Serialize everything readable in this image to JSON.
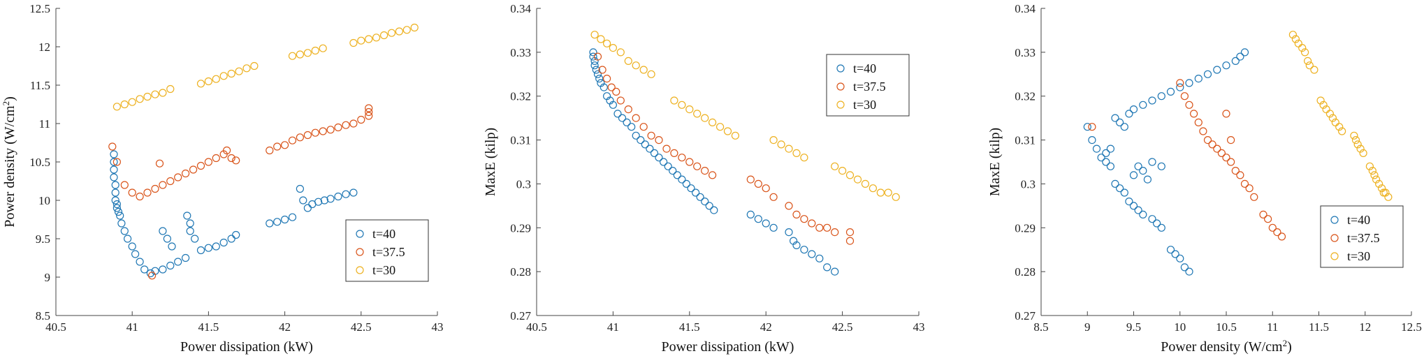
{
  "colors": {
    "t40": "#1f77b4",
    "t37_5": "#d9541a",
    "t30": "#edb120"
  },
  "chart_data": [
    {
      "type": "scatter",
      "xlabel": "Power dissipation (kW)",
      "ylabel_main": "Power density (W/cm",
      "ylabel_sup": "2",
      "ylabel_tail": ")",
      "xlim": [
        40.5,
        43
      ],
      "ylim": [
        8.5,
        12.5
      ],
      "xticks": [
        "40.5",
        "41",
        "41.5",
        "42",
        "42.5",
        "43"
      ],
      "yticks": [
        "8.5",
        "9",
        "9.5",
        "10",
        "10.5",
        "11",
        "11.5",
        "12",
        "12.5"
      ],
      "legend": "bottom-right",
      "series": [
        {
          "name": "t=40",
          "color": "#1f77b4",
          "x": [
            40.88,
            40.88,
            40.88,
            40.88,
            40.89,
            40.89,
            40.89,
            40.9,
            40.9,
            40.91,
            40.92,
            40.93,
            40.95,
            40.97,
            41.0,
            41.02,
            41.05,
            41.08,
            41.12,
            41.15,
            41.2,
            41.25,
            41.3,
            41.35,
            41.38,
            41.2,
            41.23,
            41.26,
            41.36,
            41.38,
            41.41,
            41.45,
            41.5,
            41.55,
            41.6,
            41.65,
            41.68,
            41.9,
            41.95,
            42.0,
            42.05,
            42.1,
            42.12,
            42.15,
            42.18,
            42.22,
            42.26,
            42.3,
            42.35,
            42.4,
            42.45
          ],
          "y": [
            10.6,
            10.5,
            10.4,
            10.3,
            10.2,
            10.1,
            10.0,
            9.95,
            9.9,
            9.85,
            9.8,
            9.7,
            9.6,
            9.5,
            9.4,
            9.3,
            9.2,
            9.1,
            9.05,
            9.08,
            9.1,
            9.15,
            9.2,
            9.25,
            9.6,
            9.6,
            9.5,
            9.4,
            9.8,
            9.7,
            9.5,
            9.35,
            9.38,
            9.4,
            9.45,
            9.5,
            9.55,
            9.7,
            9.72,
            9.75,
            9.78,
            10.15,
            10.0,
            9.9,
            9.95,
            9.98,
            10.0,
            10.02,
            10.05,
            10.08,
            10.1
          ]
        },
        {
          "name": "t=37.5",
          "color": "#d9541a",
          "x": [
            40.87,
            40.9,
            40.95,
            41.0,
            41.05,
            41.1,
            41.15,
            41.2,
            41.25,
            41.3,
            41.35,
            41.4,
            41.45,
            41.5,
            41.55,
            41.6,
            41.62,
            41.65,
            41.68,
            41.9,
            41.95,
            42.0,
            42.05,
            42.1,
            42.15,
            42.2,
            42.25,
            42.3,
            42.35,
            42.4,
            42.45,
            42.5,
            42.55,
            42.55,
            42.55,
            41.13,
            41.18
          ],
          "y": [
            10.7,
            10.5,
            10.2,
            10.1,
            10.05,
            10.1,
            10.15,
            10.2,
            10.25,
            10.3,
            10.35,
            10.4,
            10.45,
            10.5,
            10.55,
            10.6,
            10.65,
            10.55,
            10.52,
            10.65,
            10.7,
            10.72,
            10.78,
            10.82,
            10.85,
            10.88,
            10.9,
            10.92,
            10.95,
            10.98,
            11.0,
            11.05,
            11.1,
            11.15,
            11.2,
            9.02,
            10.48
          ]
        },
        {
          "name": "t=30",
          "color": "#edb120",
          "x": [
            40.9,
            40.95,
            41.0,
            41.05,
            41.1,
            41.15,
            41.2,
            41.25,
            41.45,
            41.5,
            41.55,
            41.6,
            41.65,
            41.7,
            41.75,
            41.8,
            42.05,
            42.1,
            42.15,
            42.2,
            42.25,
            42.45,
            42.5,
            42.55,
            42.6,
            42.65,
            42.7,
            42.75,
            42.8,
            42.85
          ],
          "y": [
            11.22,
            11.25,
            11.28,
            11.32,
            11.35,
            11.38,
            11.4,
            11.45,
            11.52,
            11.55,
            11.58,
            11.62,
            11.65,
            11.68,
            11.72,
            11.75,
            11.88,
            11.9,
            11.92,
            11.95,
            11.98,
            12.05,
            12.08,
            12.1,
            12.12,
            12.15,
            12.18,
            12.2,
            12.22,
            12.25
          ]
        }
      ]
    },
    {
      "type": "scatter",
      "xlabel": "Power dissipation (kW)",
      "ylabel_main": "MaxE (kilp)",
      "ylabel_sup": "",
      "ylabel_tail": "",
      "xlim": [
        40.5,
        43
      ],
      "ylim": [
        0.27,
        0.34
      ],
      "xticks": [
        "40.5",
        "41",
        "41.5",
        "42",
        "42.5",
        "43"
      ],
      "yticks": [
        "0.27",
        "0.28",
        "0.29",
        "0.3",
        "0.31",
        "0.32",
        "0.33",
        "0.34"
      ],
      "legend": "top-right",
      "series": [
        {
          "name": "t=40",
          "color": "#1f77b4",
          "x": [
            40.87,
            40.87,
            40.88,
            40.88,
            40.89,
            40.9,
            40.91,
            40.92,
            40.94,
            40.96,
            40.98,
            41.0,
            41.03,
            41.06,
            41.09,
            41.12,
            41.15,
            41.18,
            41.21,
            41.24,
            41.27,
            41.3,
            41.33,
            41.36,
            41.39,
            41.42,
            41.45,
            41.48,
            41.51,
            41.54,
            41.57,
            41.6,
            41.63,
            41.66,
            41.9,
            41.95,
            42.0,
            42.05,
            42.15,
            42.18,
            42.2,
            42.25,
            42.3,
            42.35,
            42.4,
            42.45
          ],
          "y": [
            0.33,
            0.329,
            0.328,
            0.327,
            0.326,
            0.325,
            0.324,
            0.323,
            0.322,
            0.32,
            0.319,
            0.318,
            0.316,
            0.315,
            0.314,
            0.313,
            0.311,
            0.31,
            0.309,
            0.308,
            0.307,
            0.306,
            0.305,
            0.304,
            0.303,
            0.302,
            0.301,
            0.3,
            0.299,
            0.298,
            0.297,
            0.296,
            0.295,
            0.294,
            0.293,
            0.292,
            0.291,
            0.29,
            0.289,
            0.287,
            0.286,
            0.285,
            0.284,
            0.283,
            0.281,
            0.28
          ]
        },
        {
          "name": "t=37.5",
          "color": "#d9541a",
          "x": [
            40.9,
            40.93,
            40.96,
            40.99,
            41.02,
            41.05,
            41.1,
            41.15,
            41.2,
            41.25,
            41.3,
            41.35,
            41.4,
            41.45,
            41.5,
            41.55,
            41.6,
            41.65,
            41.9,
            41.95,
            42.0,
            42.05,
            42.15,
            42.2,
            42.25,
            42.3,
            42.35,
            42.4,
            42.45,
            42.55,
            42.55
          ],
          "y": [
            0.329,
            0.326,
            0.324,
            0.322,
            0.321,
            0.319,
            0.317,
            0.315,
            0.313,
            0.311,
            0.31,
            0.308,
            0.307,
            0.306,
            0.305,
            0.304,
            0.303,
            0.302,
            0.301,
            0.3,
            0.299,
            0.297,
            0.295,
            0.293,
            0.292,
            0.291,
            0.29,
            0.29,
            0.289,
            0.289,
            0.287
          ]
        },
        {
          "name": "t=30",
          "color": "#edb120",
          "x": [
            40.88,
            40.92,
            40.96,
            41.0,
            41.05,
            41.1,
            41.15,
            41.2,
            41.25,
            41.4,
            41.45,
            41.5,
            41.55,
            41.6,
            41.65,
            41.7,
            41.75,
            41.8,
            42.05,
            42.1,
            42.15,
            42.2,
            42.25,
            42.45,
            42.5,
            42.55,
            42.6,
            42.65,
            42.7,
            42.75,
            42.8,
            42.85
          ],
          "y": [
            0.334,
            0.333,
            0.332,
            0.331,
            0.33,
            0.328,
            0.327,
            0.326,
            0.325,
            0.319,
            0.318,
            0.317,
            0.316,
            0.315,
            0.314,
            0.313,
            0.312,
            0.311,
            0.31,
            0.309,
            0.308,
            0.307,
            0.306,
            0.304,
            0.303,
            0.302,
            0.301,
            0.3,
            0.299,
            0.298,
            0.298,
            0.297
          ]
        }
      ]
    },
    {
      "type": "scatter",
      "xlabel_main": "Power density (W/cm",
      "xlabel_sup": "2",
      "xlabel_tail": ")",
      "ylabel_main": "MaxE (kilp)",
      "ylabel_sup": "",
      "ylabel_tail": "",
      "xlim": [
        8.5,
        12.5
      ],
      "ylim": [
        0.27,
        0.34
      ],
      "xticks": [
        "8.5",
        "9",
        "9.5",
        "10",
        "10.5",
        "11",
        "11.5",
        "12",
        "12.5"
      ],
      "yticks": [
        "0.27",
        "0.28",
        "0.29",
        "0.3",
        "0.31",
        "0.32",
        "0.33",
        "0.34"
      ],
      "legend": "bottom-right",
      "series": [
        {
          "name": "t=40",
          "color": "#1f77b4",
          "x": [
            9.0,
            9.05,
            9.1,
            9.15,
            9.2,
            9.25,
            9.3,
            9.35,
            9.4,
            9.45,
            9.5,
            9.6,
            9.7,
            9.8,
            9.9,
            10.0,
            10.1,
            10.2,
            10.3,
            10.4,
            10.5,
            10.6,
            10.65,
            10.7,
            9.3,
            9.35,
            9.4,
            9.45,
            9.5,
            9.55,
            9.6,
            9.7,
            9.75,
            9.8,
            9.9,
            9.95,
            10.0,
            10.05,
            10.1,
            9.5,
            9.55,
            9.6,
            9.65,
            9.7,
            9.8,
            9.25,
            9.2
          ],
          "y": [
            0.313,
            0.31,
            0.308,
            0.306,
            0.305,
            0.304,
            0.315,
            0.314,
            0.313,
            0.316,
            0.317,
            0.318,
            0.319,
            0.32,
            0.321,
            0.322,
            0.323,
            0.324,
            0.325,
            0.326,
            0.327,
            0.328,
            0.329,
            0.33,
            0.3,
            0.299,
            0.298,
            0.296,
            0.295,
            0.294,
            0.293,
            0.292,
            0.291,
            0.29,
            0.285,
            0.284,
            0.283,
            0.281,
            0.28,
            0.302,
            0.304,
            0.303,
            0.301,
            0.305,
            0.304,
            0.308,
            0.307
          ]
        },
        {
          "name": "t=37.5",
          "color": "#d9541a",
          "x": [
            9.05,
            10.0,
            10.05,
            10.1,
            10.15,
            10.2,
            10.25,
            10.3,
            10.35,
            10.4,
            10.45,
            10.5,
            10.55,
            10.6,
            10.65,
            10.7,
            10.75,
            10.8,
            10.9,
            10.95,
            11.0,
            11.05,
            11.1,
            10.5,
            10.55
          ],
          "y": [
            0.313,
            0.323,
            0.32,
            0.318,
            0.316,
            0.314,
            0.312,
            0.31,
            0.309,
            0.308,
            0.307,
            0.306,
            0.305,
            0.303,
            0.302,
            0.3,
            0.299,
            0.297,
            0.293,
            0.292,
            0.29,
            0.289,
            0.288,
            0.316,
            0.31
          ]
        },
        {
          "name": "t=30",
          "color": "#edb120",
          "x": [
            11.22,
            11.25,
            11.28,
            11.32,
            11.35,
            11.38,
            11.4,
            11.45,
            11.52,
            11.55,
            11.58,
            11.62,
            11.65,
            11.68,
            11.72,
            11.75,
            11.88,
            11.9,
            11.92,
            11.95,
            11.98,
            12.05,
            12.08,
            12.1,
            12.12,
            12.15,
            12.18,
            12.2,
            12.22,
            12.25
          ],
          "y": [
            0.334,
            0.333,
            0.332,
            0.331,
            0.33,
            0.328,
            0.327,
            0.326,
            0.319,
            0.318,
            0.317,
            0.316,
            0.315,
            0.314,
            0.313,
            0.312,
            0.311,
            0.31,
            0.309,
            0.308,
            0.307,
            0.304,
            0.303,
            0.302,
            0.301,
            0.3,
            0.299,
            0.298,
            0.298,
            0.297
          ]
        }
      ]
    }
  ]
}
